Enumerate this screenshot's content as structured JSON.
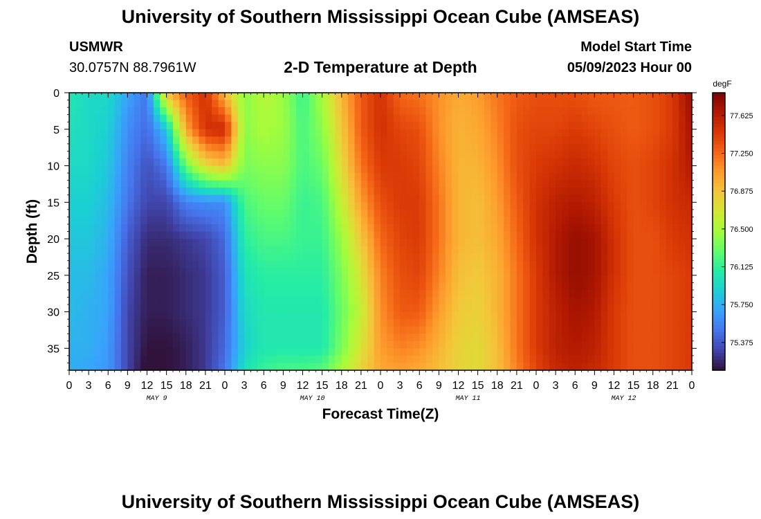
{
  "header": {
    "title": "University of Southern Mississippi Ocean Cube (AMSEAS)",
    "station_name": "USMWR",
    "station_coords": "30.0757N  88.7961W",
    "subtitle": "2-D Temperature at Depth",
    "model_start_label": "Model Start Time",
    "model_start_value": "05/09/2023 Hour 00"
  },
  "footer": {
    "title": "University of Southern Mississippi Ocean Cube (AMSEAS)"
  },
  "colors": {
    "colormap": [
      "#30123b",
      "#4145ab",
      "#4675ed",
      "#39a2fc",
      "#1bcfd4",
      "#24eca6",
      "#61fc6c",
      "#a4fc3b",
      "#d1e834",
      "#f3c63a",
      "#fe9b2d",
      "#f36315",
      "#d93806",
      "#b11901",
      "#7a0402"
    ]
  },
  "chart_data": {
    "type": "heatmap",
    "xlabel": "Forecast Time(Z)",
    "ylabel": "Depth (ft)",
    "x_tick_labels": [
      "0",
      "3",
      "6",
      "9",
      "12",
      "15",
      "18",
      "21",
      "0",
      "3",
      "6",
      "9",
      "12",
      "15",
      "18",
      "21",
      "0",
      "3",
      "6",
      "9",
      "12",
      "15",
      "18",
      "21",
      "0",
      "3",
      "6",
      "9",
      "12",
      "15",
      "18",
      "21",
      "0"
    ],
    "day_labels": [
      {
        "label": "MAY 9",
        "hour": 13.5
      },
      {
        "label": "MAY 10",
        "hour": 37.5
      },
      {
        "label": "MAY 11",
        "hour": 61.5
      },
      {
        "label": "MAY 12",
        "hour": 85.5
      }
    ],
    "xlim": [
      0,
      96
    ],
    "ylim": [
      0,
      38
    ],
    "y_ticks": [
      0,
      5,
      10,
      15,
      20,
      25,
      30,
      35
    ],
    "colorbar": {
      "unit": "degF",
      "tick_labels": [
        "77.625",
        "77.250",
        "76.875",
        "76.500",
        "76.125",
        "75.750",
        "75.375"
      ],
      "tick_values": [
        77.625,
        77.25,
        76.875,
        76.5,
        76.125,
        75.75,
        75.375
      ],
      "range": [
        75.1,
        77.85
      ]
    },
    "depths_ft": [
      0,
      5,
      10,
      15,
      20,
      25,
      30,
      35,
      38
    ],
    "hours": [
      0,
      3,
      6,
      9,
      12,
      15,
      18,
      21,
      24,
      27,
      30,
      33,
      36,
      39,
      42,
      45,
      48,
      51,
      54,
      57,
      60,
      63,
      66,
      69,
      72,
      75,
      78,
      81,
      84,
      87,
      90,
      93,
      96
    ],
    "values_degF": [
      [
        76.05,
        75.95,
        75.95,
        75.7,
        75.5,
        76.9,
        77.3,
        77.5,
        76.9,
        76.4,
        76.55,
        76.45,
        76.15,
        76.5,
        76.95,
        77.3,
        77.5,
        77.25,
        77.2,
        77.1,
        77.0,
        77.05,
        77.2,
        77.3,
        77.35,
        77.35,
        77.35,
        77.3,
        77.3,
        77.3,
        77.35,
        77.45,
        77.75
      ],
      [
        76.0,
        75.95,
        75.9,
        75.6,
        75.45,
        75.85,
        77.0,
        77.5,
        77.55,
        76.4,
        76.5,
        76.45,
        76.2,
        76.4,
        76.85,
        77.3,
        77.5,
        77.4,
        77.35,
        77.1,
        76.95,
        77.0,
        77.15,
        77.35,
        77.4,
        77.4,
        77.45,
        77.4,
        77.35,
        77.3,
        77.35,
        77.45,
        77.7
      ],
      [
        75.95,
        75.95,
        75.85,
        75.55,
        75.35,
        75.5,
        76.3,
        76.75,
        76.9,
        76.35,
        76.4,
        76.4,
        76.2,
        76.3,
        76.75,
        77.2,
        77.45,
        77.45,
        77.4,
        77.15,
        76.95,
        76.95,
        77.1,
        77.35,
        77.45,
        77.5,
        77.55,
        77.5,
        77.4,
        77.35,
        77.4,
        77.5,
        77.65
      ],
      [
        75.9,
        75.9,
        75.8,
        75.5,
        75.3,
        75.3,
        75.55,
        75.6,
        75.6,
        76.2,
        76.3,
        76.3,
        76.15,
        76.2,
        76.6,
        77.05,
        77.35,
        77.45,
        77.45,
        77.2,
        76.95,
        76.9,
        77.05,
        77.3,
        77.5,
        77.6,
        77.65,
        77.6,
        77.45,
        77.35,
        77.4,
        77.5,
        77.55
      ],
      [
        75.85,
        75.85,
        75.75,
        75.4,
        75.2,
        75.2,
        75.25,
        75.3,
        75.45,
        76.1,
        76.2,
        76.2,
        76.15,
        76.15,
        76.45,
        76.85,
        77.25,
        77.4,
        77.45,
        77.2,
        76.95,
        76.9,
        77.0,
        77.25,
        77.5,
        77.65,
        77.75,
        77.7,
        77.5,
        77.35,
        77.35,
        77.45,
        77.5
      ],
      [
        75.8,
        75.8,
        75.7,
        75.35,
        75.15,
        75.15,
        75.2,
        75.25,
        75.4,
        76.0,
        76.1,
        76.1,
        76.1,
        76.1,
        76.35,
        76.7,
        77.15,
        77.35,
        77.4,
        77.15,
        76.9,
        76.85,
        76.95,
        77.2,
        77.45,
        77.65,
        77.75,
        77.7,
        77.5,
        77.35,
        77.35,
        77.4,
        77.45
      ],
      [
        75.8,
        75.75,
        75.7,
        75.3,
        75.15,
        75.15,
        75.2,
        75.25,
        75.4,
        75.95,
        76.05,
        76.05,
        76.05,
        76.05,
        76.3,
        76.6,
        77.1,
        77.3,
        77.3,
        77.05,
        76.85,
        76.8,
        76.95,
        77.2,
        77.45,
        77.6,
        77.7,
        77.65,
        77.45,
        77.35,
        77.35,
        77.4,
        77.45
      ],
      [
        75.75,
        75.75,
        75.65,
        75.3,
        75.1,
        75.1,
        75.15,
        75.25,
        75.45,
        75.9,
        76.05,
        76.05,
        76.05,
        76.05,
        76.35,
        76.7,
        77.05,
        77.15,
        77.1,
        76.95,
        76.8,
        76.75,
        76.9,
        77.2,
        77.45,
        77.6,
        77.65,
        77.6,
        77.45,
        77.35,
        77.35,
        77.4,
        77.45
      ],
      [
        75.75,
        75.7,
        75.65,
        75.3,
        75.05,
        75.1,
        75.15,
        75.25,
        75.5,
        76.0,
        76.15,
        76.2,
        76.2,
        76.25,
        76.5,
        76.8,
        77.0,
        77.05,
        77.0,
        76.9,
        76.8,
        76.75,
        76.9,
        77.15,
        77.4,
        77.55,
        77.6,
        77.55,
        77.45,
        77.35,
        77.35,
        77.4,
        77.45
      ]
    ]
  }
}
